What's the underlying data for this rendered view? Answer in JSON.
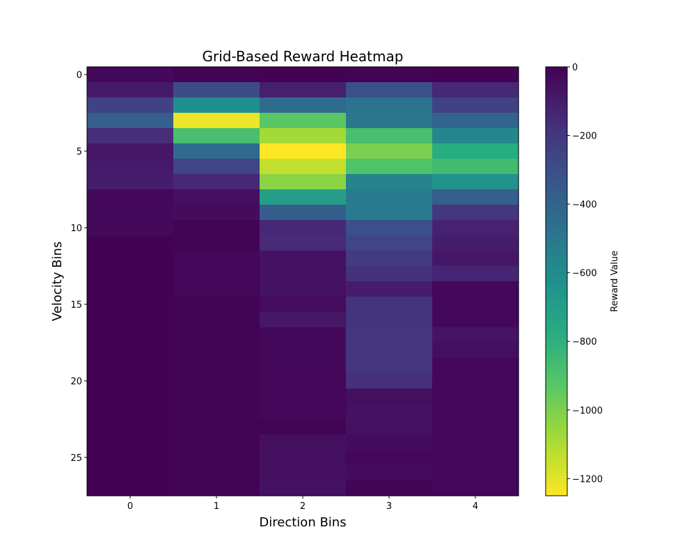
{
  "chart_data": {
    "type": "heatmap",
    "title": "Grid-Based Reward Heatmap",
    "xlabel": "Direction Bins",
    "ylabel": "Velocity Bins",
    "colorbar_label": "Reward Value",
    "colormap": "viridis",
    "reversed_colormap": true,
    "x_categories": [
      0,
      1,
      2,
      3,
      4
    ],
    "y_categories": [
      0,
      1,
      2,
      3,
      4,
      5,
      6,
      7,
      8,
      9,
      10,
      11,
      12,
      13,
      14,
      15,
      16,
      17,
      18,
      19,
      20,
      21,
      22,
      23,
      24,
      25,
      26,
      27
    ],
    "x_ticks": [
      "0",
      "1",
      "2",
      "3",
      "4"
    ],
    "y_ticks": [
      "0",
      "5",
      "10",
      "15",
      "20",
      "25"
    ],
    "y_tick_values": [
      0,
      5,
      10,
      15,
      20,
      25
    ],
    "colorbar_ticks": [
      "0",
      "−200",
      "−400",
      "−600",
      "−800",
      "−1000",
      "−1200"
    ],
    "colorbar_tick_values": [
      0,
      -200,
      -400,
      -600,
      -800,
      -1000,
      -1200
    ],
    "value_range": [
      -1250,
      0
    ],
    "values": [
      [
        -30,
        -10,
        -5,
        -10,
        -5
      ],
      [
        -90,
        -290,
        -110,
        -310,
        -140
      ],
      [
        -250,
        -620,
        -440,
        -480,
        -250
      ],
      [
        -380,
        -1220,
        -930,
        -500,
        -410
      ],
      [
        -160,
        -880,
        -1080,
        -880,
        -580
      ],
      [
        -80,
        -440,
        -1250,
        -1000,
        -780
      ],
      [
        -90,
        -260,
        -1140,
        -900,
        -860
      ],
      [
        -100,
        -140,
        -1030,
        -560,
        -640
      ],
      [
        -20,
        -50,
        -700,
        -520,
        -380
      ],
      [
        -30,
        -40,
        -370,
        -520,
        -200
      ],
      [
        -30,
        -10,
        -140,
        -310,
        -120
      ],
      [
        -5,
        -10,
        -150,
        -260,
        -100
      ],
      [
        -5,
        -20,
        -60,
        -220,
        -80
      ],
      [
        -5,
        -20,
        -60,
        -180,
        -130
      ],
      [
        -5,
        -20,
        -60,
        -100,
        -20
      ],
      [
        -5,
        -10,
        -40,
        -190,
        -20
      ],
      [
        -5,
        -10,
        -80,
        -190,
        -20
      ],
      [
        -5,
        -10,
        -30,
        -200,
        -70
      ],
      [
        -5,
        -10,
        -30,
        -200,
        -50
      ],
      [
        -5,
        -10,
        -30,
        -200,
        -20
      ],
      [
        -5,
        -10,
        -20,
        -170,
        -20
      ],
      [
        -5,
        -10,
        -20,
        -50,
        -20
      ],
      [
        -5,
        -10,
        -20,
        -60,
        -20
      ],
      [
        -5,
        -10,
        -10,
        -60,
        -20
      ],
      [
        -5,
        -10,
        -50,
        -40,
        -20
      ],
      [
        -5,
        -10,
        -50,
        -20,
        -20
      ],
      [
        -5,
        -10,
        -50,
        -40,
        -20
      ],
      [
        -5,
        -10,
        -60,
        -10,
        -20
      ]
    ]
  }
}
